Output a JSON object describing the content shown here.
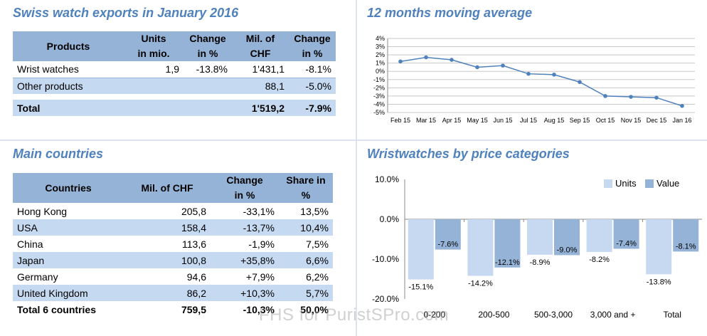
{
  "colors": {
    "title": "#4f81bd",
    "header_bg": "#95b3d7",
    "band_bg": "#c5d9f1",
    "line": "#4f81bd",
    "units_bar": "#c6d9f1",
    "value_bar": "#95b3d7"
  },
  "exports": {
    "title": "Swiss watch exports in January 2016",
    "headers": [
      [
        "Products"
      ],
      [
        "Units",
        "in mio."
      ],
      [
        "Change",
        "in %"
      ],
      [
        "Mil. of",
        "CHF"
      ],
      [
        "Change",
        "in %"
      ]
    ],
    "rows": [
      [
        "Wrist watches",
        "1,9",
        "-13.8%",
        "1'431,1",
        "-8.1%"
      ],
      [
        "Other products",
        "",
        "",
        "88,1",
        "-5.0%"
      ]
    ],
    "total": [
      "Total",
      "",
      "",
      "1'519,2",
      "-7.9%"
    ]
  },
  "countries": {
    "title": "Main countries",
    "headers": [
      [
        "Countries"
      ],
      [
        "Mil. of CHF"
      ],
      [
        "Change",
        "in %"
      ],
      [
        "Share in %"
      ]
    ],
    "rows": [
      [
        "Hong Kong",
        "205,8",
        "-33,1%",
        "13,5%"
      ],
      [
        "USA",
        "158,4",
        "-13,7%",
        "10,4%"
      ],
      [
        "China",
        "113,6",
        "-1,9%",
        "7,5%"
      ],
      [
        "Japan",
        "100,8",
        "+35,8%",
        "6,6%"
      ],
      [
        "Germany",
        "94,6",
        "+7,9%",
        "6,2%"
      ],
      [
        "United Kingdom",
        "86,2",
        "+10,3%",
        "5,7%"
      ]
    ],
    "total": [
      "Total 6 countries",
      "759,5",
      "-10,3%",
      "50,0%"
    ]
  },
  "chart_data": [
    {
      "type": "line",
      "title": "12 months moving average",
      "categories": [
        "Feb 15",
        "Mar 15",
        "Apr 15",
        "May 15",
        "Jun 15",
        "Jul 15",
        "Aug 15",
        "Sep 15",
        "Oct 15",
        "Nov 15",
        "Dec 15",
        "Jan 16"
      ],
      "values": [
        1.2,
        1.7,
        1.4,
        0.5,
        0.7,
        -0.3,
        -0.4,
        -1.3,
        -3.0,
        -3.1,
        -3.2,
        -4.2
      ],
      "yticks": [
        "4%",
        "3%",
        "2%",
        "1%",
        "0%",
        "-1%",
        "-2%",
        "-3%",
        "-4%",
        "-5%"
      ],
      "ylim": [
        -5,
        4
      ],
      "grid": true
    },
    {
      "type": "bar",
      "title": "Wristwatches by price categories",
      "categories": [
        "0-200",
        "200-500",
        "500-3,000",
        "3,000 and +",
        "Total"
      ],
      "series": [
        {
          "name": "Units",
          "values": [
            -15.1,
            -14.2,
            -8.9,
            -8.2,
            -13.8
          ],
          "labels": [
            "-15.1%",
            "-14.2%",
            "-8.9%",
            "-8.2%",
            "-13.8%"
          ]
        },
        {
          "name": "Value",
          "values": [
            -7.6,
            -12.1,
            -9.0,
            -7.4,
            -8.1
          ],
          "labels": [
            "-7.6%",
            "-12.1%",
            "-9.0%",
            "-7.4%",
            "-8.1%"
          ]
        }
      ],
      "yticks": [
        "10.0%",
        "0.0%",
        "-10.0%",
        "-20.0%"
      ],
      "ylim": [
        -20,
        10
      ],
      "legend": "top-right"
    }
  ],
  "watermark": "FHS for PuristSPro.com"
}
